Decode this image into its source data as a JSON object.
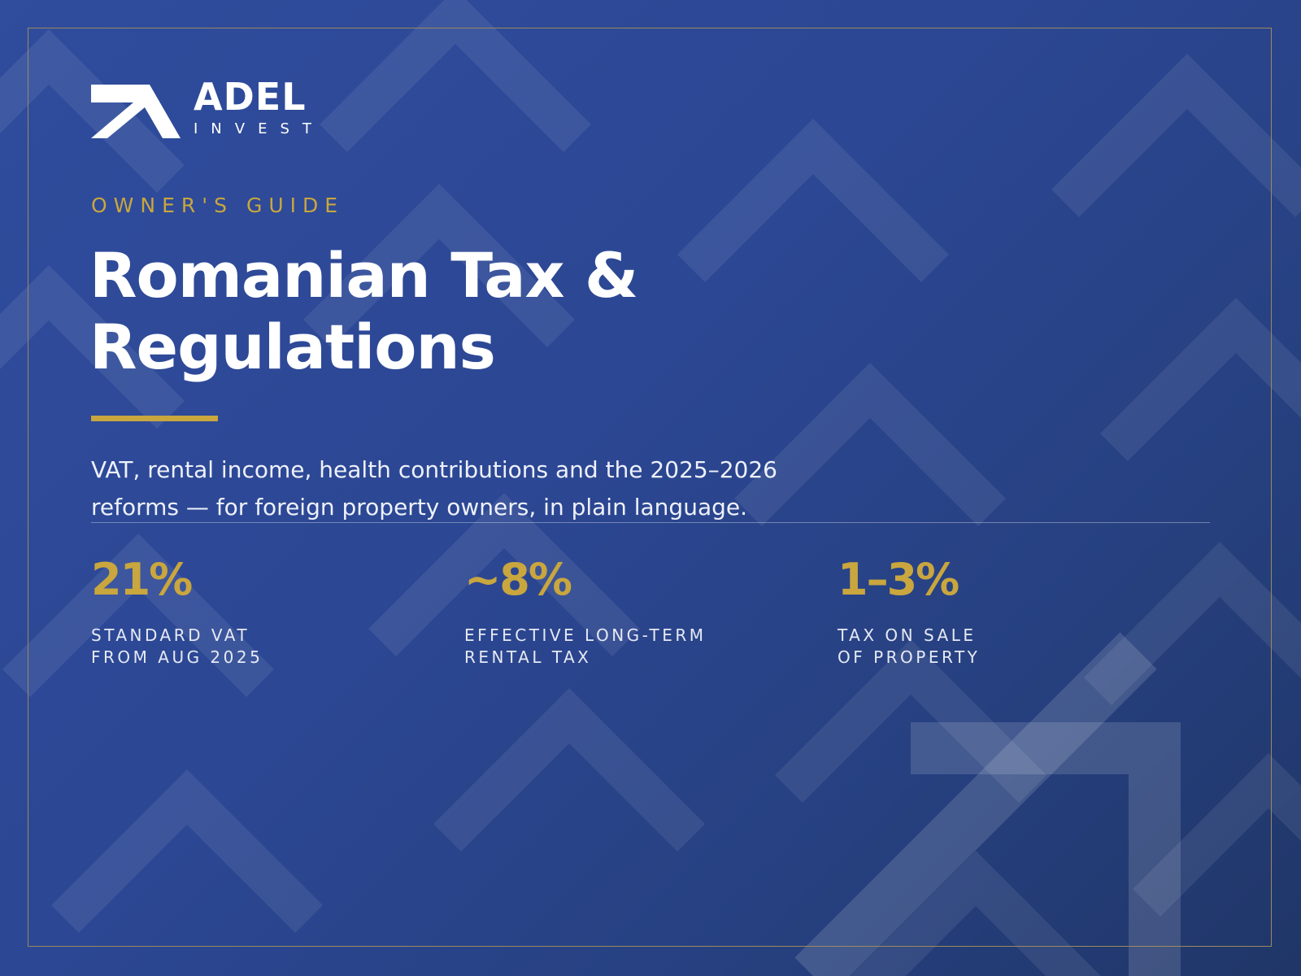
{
  "brand": {
    "name": "ADEL",
    "tagline": "INVEST",
    "logo_icon": "arrow-up-right-icon"
  },
  "eyebrow": "OWNER'S GUIDE",
  "title": {
    "line1": "Romanian Tax &",
    "line2": "Regulations"
  },
  "subtitle": {
    "line1": "VAT, rental income, health contributions and the 2025–2026",
    "line2": "reforms — for foreign property owners, in plain language."
  },
  "stats": [
    {
      "value": "21%",
      "label_line1": "STANDARD VAT",
      "label_line2": "FROM AUG 2025"
    },
    {
      "value": "~8%",
      "label_line1": "EFFECTIVE LONG-TERM",
      "label_line2": "RENTAL TAX"
    },
    {
      "value": "1–3%",
      "label_line1": "TAX ON SALE",
      "label_line2": "OF PROPERTY"
    }
  ],
  "colors": {
    "background": "#2c4793",
    "accent": "#c9a63e",
    "frame": "#9a8a5e",
    "text": "#ffffff"
  }
}
